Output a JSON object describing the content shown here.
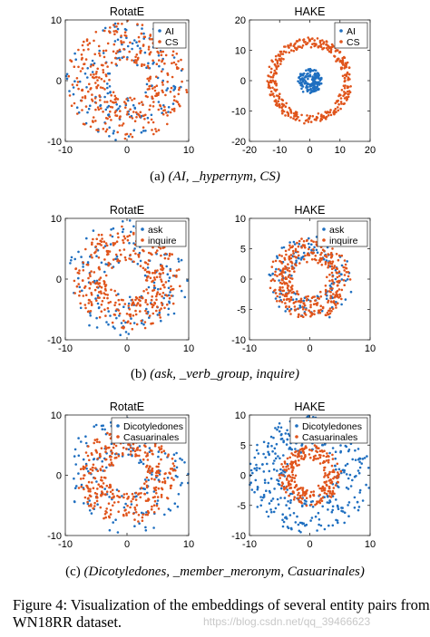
{
  "colors": {
    "blue": "#1f6fc0",
    "orange": "#e0541b",
    "axis": "#262626"
  },
  "captions": [
    {
      "label": "(a)",
      "text": "(AI, _hypernym, CS)"
    },
    {
      "label": "(b)",
      "text": "(ask, _verb_group, inquire)"
    },
    {
      "label": "(c)",
      "text": "(Dicotyledones, _member_meronym, Casuarinales)"
    }
  ],
  "figure_caption": "Figure 4: Visualization of the embeddings of several entity pairs from WN18RR dataset.",
  "watermark": "https://blog.csdn.net/qq_39466623",
  "chart_data": [
    {
      "type": "scatter",
      "title": "RotatE",
      "xlim": [
        -10,
        10
      ],
      "ylim": [
        -10,
        10
      ],
      "xticks": [
        -10,
        0,
        10
      ],
      "yticks": [
        -10,
        0,
        10
      ],
      "legend": "top-right",
      "series": [
        {
          "name": "AI",
          "color": "blue",
          "ring": [
            3,
            10
          ],
          "count": 160
        },
        {
          "name": "CS",
          "color": "orange",
          "ring": [
            3,
            10
          ],
          "count": 360
        }
      ]
    },
    {
      "type": "scatter",
      "title": "HAKE",
      "xlim": [
        -20,
        20
      ],
      "ylim": [
        -20,
        20
      ],
      "xticks": [
        -20,
        -10,
        0,
        10,
        20
      ],
      "yticks": [
        -20,
        -10,
        0,
        10,
        20
      ],
      "legend": "top-right",
      "series": [
        {
          "name": "AI",
          "color": "blue",
          "ring": [
            1,
            4
          ],
          "count": 160
        },
        {
          "name": "CS",
          "color": "orange",
          "ring": [
            11,
            14
          ],
          "count": 360
        }
      ]
    },
    {
      "type": "scatter",
      "title": "RotatE",
      "xlim": [
        -10,
        10
      ],
      "ylim": [
        -10,
        10
      ],
      "xticks": [
        -10,
        0,
        10
      ],
      "yticks": [
        -10,
        0,
        10
      ],
      "legend": "top-right",
      "series": [
        {
          "name": "ask",
          "color": "blue",
          "ring": [
            3,
            10
          ],
          "count": 160
        },
        {
          "name": "inquire",
          "color": "orange",
          "ring": [
            3,
            8.5
          ],
          "count": 360
        }
      ]
    },
    {
      "type": "scatter",
      "title": "HAKE",
      "xlim": [
        -10,
        10
      ],
      "ylim": [
        -10,
        10
      ],
      "xticks": [
        -10,
        0,
        10
      ],
      "yticks": [
        -10,
        -5,
        0,
        5,
        10
      ],
      "legend": "top-right",
      "series": [
        {
          "name": "ask",
          "color": "blue",
          "ring": [
            3,
            7
          ],
          "count": 140
        },
        {
          "name": "inquire",
          "color": "orange",
          "ring": [
            3,
            6.5
          ],
          "count": 360
        }
      ]
    },
    {
      "type": "scatter",
      "title": "RotatE",
      "xlim": [
        -10,
        10
      ],
      "ylim": [
        -10,
        10
      ],
      "xticks": [
        -10,
        0,
        10
      ],
      "yticks": [
        -10,
        0,
        10
      ],
      "legend": "top-right",
      "series": [
        {
          "name": "Dicotyledones",
          "color": "blue",
          "ring": [
            3,
            10
          ],
          "count": 170
        },
        {
          "name": "Casuarinales",
          "color": "orange",
          "ring": [
            3,
            8
          ],
          "count": 360
        }
      ]
    },
    {
      "type": "scatter",
      "title": "HAKE",
      "xlim": [
        -10,
        10
      ],
      "ylim": [
        -10,
        10
      ],
      "xticks": [
        -10,
        0,
        10
      ],
      "yticks": [
        -10,
        -5,
        0,
        5,
        10
      ],
      "legend": "top-right",
      "series": [
        {
          "name": "Dicotyledones",
          "color": "blue",
          "ring": [
            4,
            10
          ],
          "count": 360
        },
        {
          "name": "Casuarinales",
          "color": "orange",
          "ring": [
            2.5,
            5
          ],
          "count": 260
        }
      ]
    }
  ]
}
